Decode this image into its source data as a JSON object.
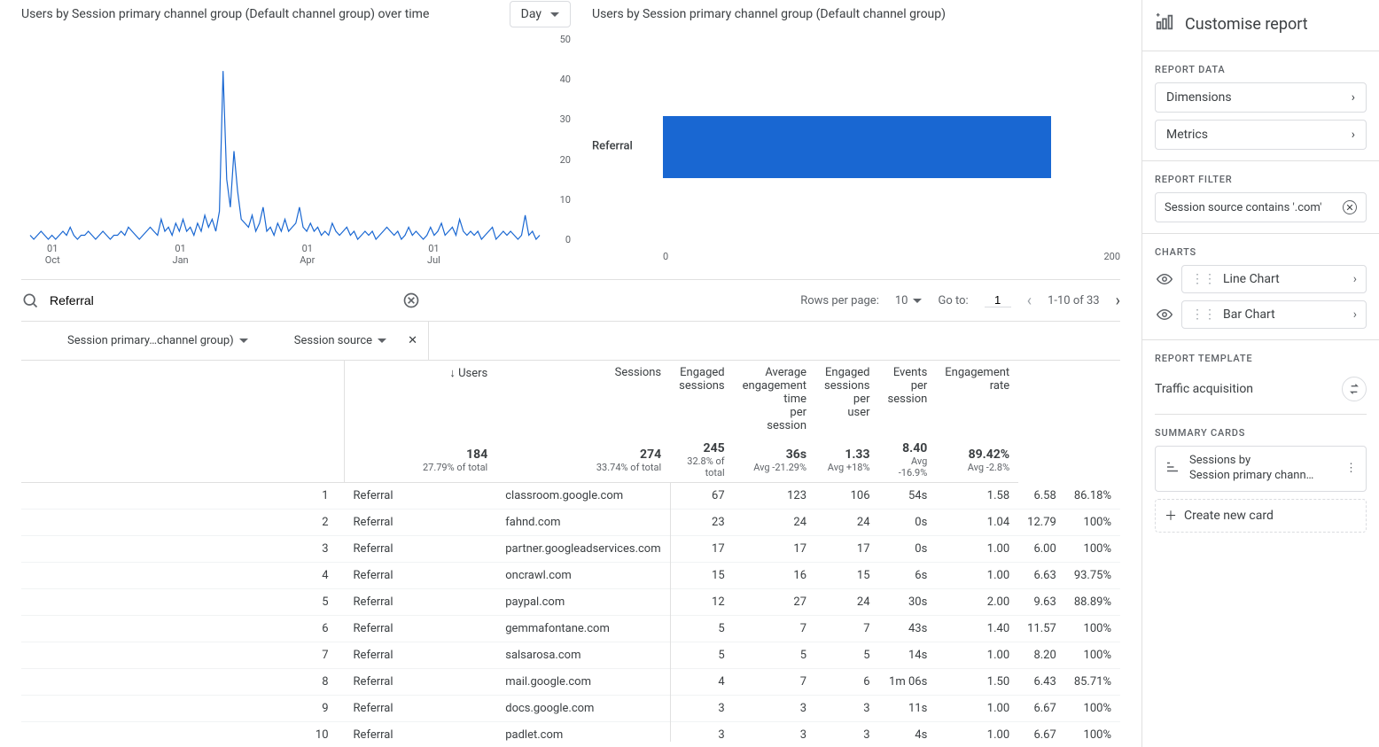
{
  "charts": {
    "line": {
      "title": "Users by Session primary channel group (Default channel group) over time",
      "granularity_selected": "Day",
      "type": "line",
      "color": "#1967d2",
      "ylim": [
        0,
        50
      ],
      "yticks": [
        0,
        10,
        20,
        30,
        40,
        50
      ],
      "xticks": [
        {
          "day": "01",
          "month": "Oct"
        },
        {
          "day": "01",
          "month": "Jan"
        },
        {
          "day": "01",
          "month": "Apr"
        },
        {
          "day": "01",
          "month": "Jul"
        }
      ],
      "series": [
        1,
        0,
        1,
        2,
        1,
        0,
        1,
        0,
        1,
        2,
        1,
        3,
        1,
        0,
        1,
        1,
        2,
        1,
        0,
        1,
        2,
        1,
        0,
        1,
        1,
        2,
        1,
        3,
        2,
        1,
        0,
        1,
        2,
        3,
        2,
        1,
        5,
        2,
        3,
        1,
        4,
        2,
        5,
        2,
        3,
        1,
        4,
        2,
        6,
        3,
        5,
        2,
        7,
        42,
        15,
        8,
        22,
        12,
        5,
        4,
        3,
        6,
        2,
        4,
        8,
        2,
        3,
        1,
        4,
        2,
        5,
        2,
        3,
        4,
        8,
        3,
        2,
        4,
        2,
        3,
        1,
        2,
        1,
        4,
        2,
        1,
        2,
        3,
        1,
        2,
        0,
        1,
        2,
        1,
        2,
        0,
        1,
        2,
        3,
        2,
        1,
        2,
        0,
        1,
        3,
        1,
        2,
        1,
        0,
        1,
        3,
        1,
        2,
        4,
        1,
        2,
        3,
        1,
        5,
        2,
        1,
        2,
        1,
        2,
        0,
        1,
        2,
        3,
        0,
        1,
        2,
        1,
        2,
        1,
        0,
        1,
        6,
        1,
        2,
        0,
        1
      ]
    },
    "bar": {
      "title": "Users by Session primary channel group (Default channel group)",
      "type": "bar",
      "label": "Referral",
      "value": 184,
      "xlim": [
        0,
        200
      ],
      "bar_color": "#1967d2",
      "tick_color": "#5f6368"
    }
  },
  "toolbar": {
    "search_value": "Referral",
    "rows_label": "Rows per page:",
    "rows_per_page": "10",
    "goto_label": "Go to:",
    "goto_value": "1",
    "range_text": "1-10 of 33"
  },
  "dimensions": {
    "primary": "Session primary…channel group)",
    "secondary": "Session source"
  },
  "table": {
    "columns": [
      {
        "label": "Users",
        "sort": "desc"
      },
      {
        "label": "Sessions"
      },
      {
        "label": "Engaged sessions"
      },
      {
        "label": "Average engagement time per session"
      },
      {
        "label": "Engaged sessions per user"
      },
      {
        "label": "Events per session"
      },
      {
        "label": "Engagement rate"
      }
    ],
    "totals": [
      {
        "val": "184",
        "sub": "27.79% of total"
      },
      {
        "val": "274",
        "sub": "33.74% of total"
      },
      {
        "val": "245",
        "sub": "32.8% of total"
      },
      {
        "val": "36s",
        "sub": "Avg -21.29%"
      },
      {
        "val": "1.33",
        "sub": "Avg +18%"
      },
      {
        "val": "8.40",
        "sub": "Avg -16.9%"
      },
      {
        "val": "89.42%",
        "sub": "Avg -2.8%"
      }
    ],
    "rows": [
      {
        "idx": 1,
        "channel": "Referral",
        "source": "classroom.google.com",
        "cells": [
          "67",
          "123",
          "106",
          "54s",
          "1.58",
          "6.58",
          "86.18%"
        ]
      },
      {
        "idx": 2,
        "channel": "Referral",
        "source": "fahnd.com",
        "cells": [
          "23",
          "24",
          "24",
          "0s",
          "1.04",
          "12.79",
          "100%"
        ]
      },
      {
        "idx": 3,
        "channel": "Referral",
        "source": "partner.googleadservices.com",
        "cells": [
          "17",
          "17",
          "17",
          "0s",
          "1.00",
          "6.00",
          "100%"
        ]
      },
      {
        "idx": 4,
        "channel": "Referral",
        "source": "oncrawl.com",
        "cells": [
          "15",
          "16",
          "15",
          "6s",
          "1.00",
          "6.63",
          "93.75%"
        ]
      },
      {
        "idx": 5,
        "channel": "Referral",
        "source": "paypal.com",
        "cells": [
          "12",
          "27",
          "24",
          "30s",
          "2.00",
          "9.63",
          "88.89%"
        ]
      },
      {
        "idx": 6,
        "channel": "Referral",
        "source": "gemmafontane.com",
        "cells": [
          "5",
          "7",
          "7",
          "43s",
          "1.40",
          "11.57",
          "100%"
        ]
      },
      {
        "idx": 7,
        "channel": "Referral",
        "source": "salsarosa.com",
        "cells": [
          "5",
          "5",
          "5",
          "14s",
          "1.00",
          "8.20",
          "100%"
        ]
      },
      {
        "idx": 8,
        "channel": "Referral",
        "source": "mail.google.com",
        "cells": [
          "4",
          "7",
          "6",
          "1m 06s",
          "1.50",
          "6.43",
          "85.71%"
        ]
      },
      {
        "idx": 9,
        "channel": "Referral",
        "source": "docs.google.com",
        "cells": [
          "3",
          "3",
          "3",
          "11s",
          "1.00",
          "6.67",
          "100%"
        ]
      },
      {
        "idx": 10,
        "channel": "Referral",
        "source": "padlet.com",
        "cells": [
          "3",
          "3",
          "3",
          "4s",
          "1.00",
          "6.67",
          "100%"
        ]
      }
    ]
  },
  "sidebar": {
    "title": "Customise report",
    "sections": {
      "data": "Report Data",
      "filter": "Report Filter",
      "charts": "Charts",
      "template": "Report Template",
      "summary": "Summary Cards"
    },
    "dimensions_btn": "Dimensions",
    "metrics_btn": "Metrics",
    "filter_chip": "Session source contains '.com'",
    "chart_items": [
      "Line Chart",
      "Bar Chart"
    ],
    "template_name": "Traffic acquisition",
    "summary_card_line1": "Sessions by",
    "summary_card_line2": "Session primary chann…",
    "create_card": "Create new card"
  }
}
